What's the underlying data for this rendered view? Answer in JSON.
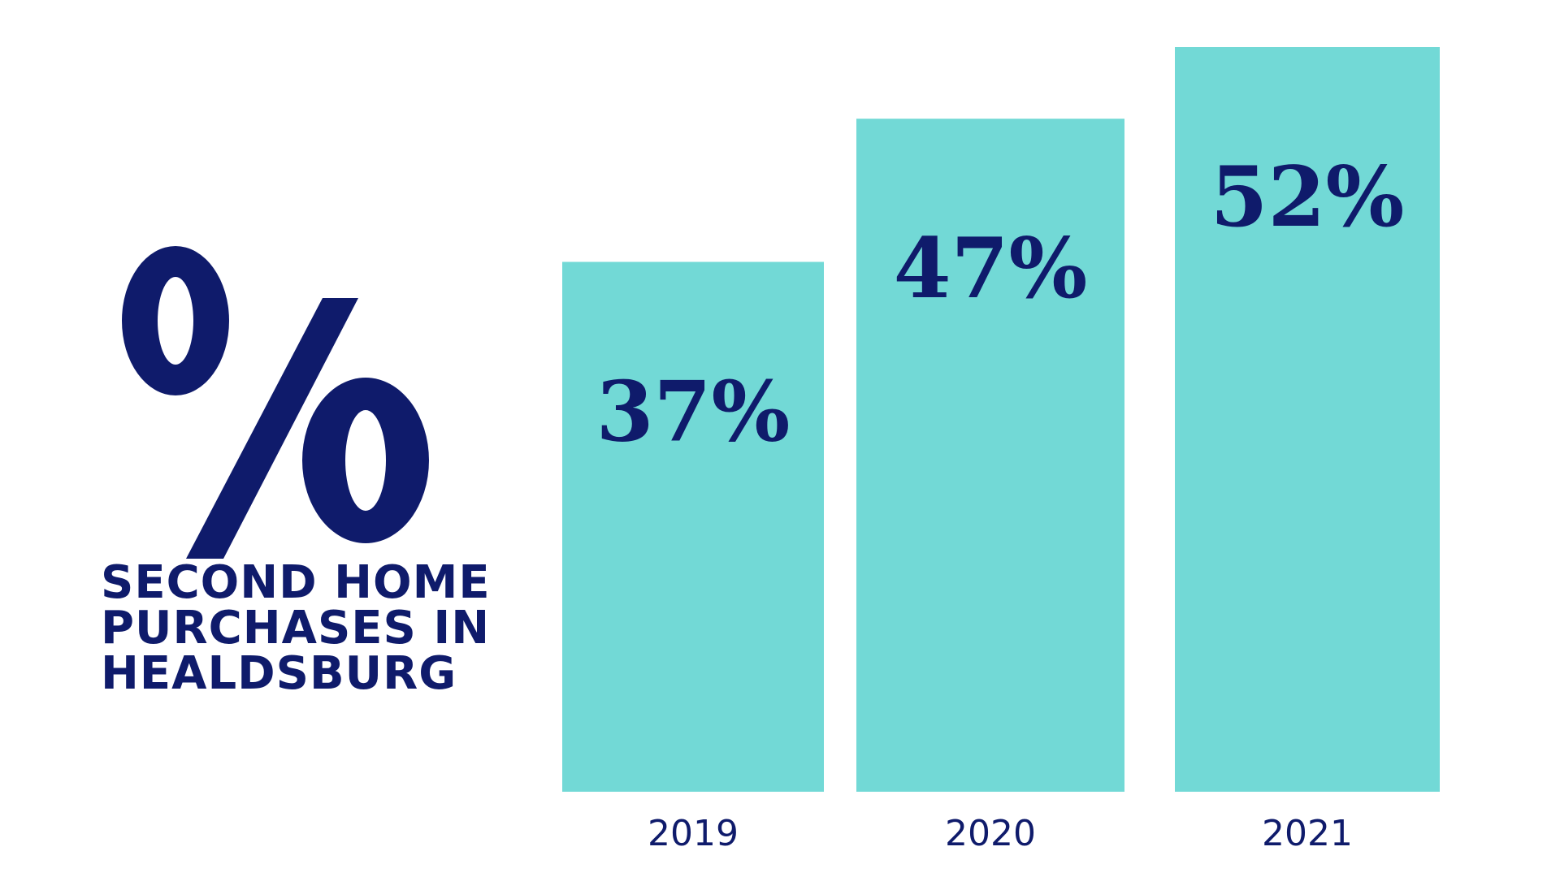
{
  "headline": {
    "symbol": "%",
    "lines": [
      "SECOND HOME",
      "PURCHASES IN",
      "HEALDSBURG"
    ]
  },
  "colors": {
    "bar": "#72d9d6",
    "text": "#0f1b6b",
    "background": "#ffffff"
  },
  "chart_data": {
    "type": "bar",
    "title": "SECOND HOME PURCHASES IN HEALDSBURG",
    "categories": [
      "2019",
      "2020",
      "2021"
    ],
    "values": [
      37,
      47,
      52
    ],
    "data_labels": [
      "37%",
      "47%",
      "52%"
    ],
    "xlabel": "",
    "ylabel": "",
    "grid": false,
    "legend": "none"
  }
}
